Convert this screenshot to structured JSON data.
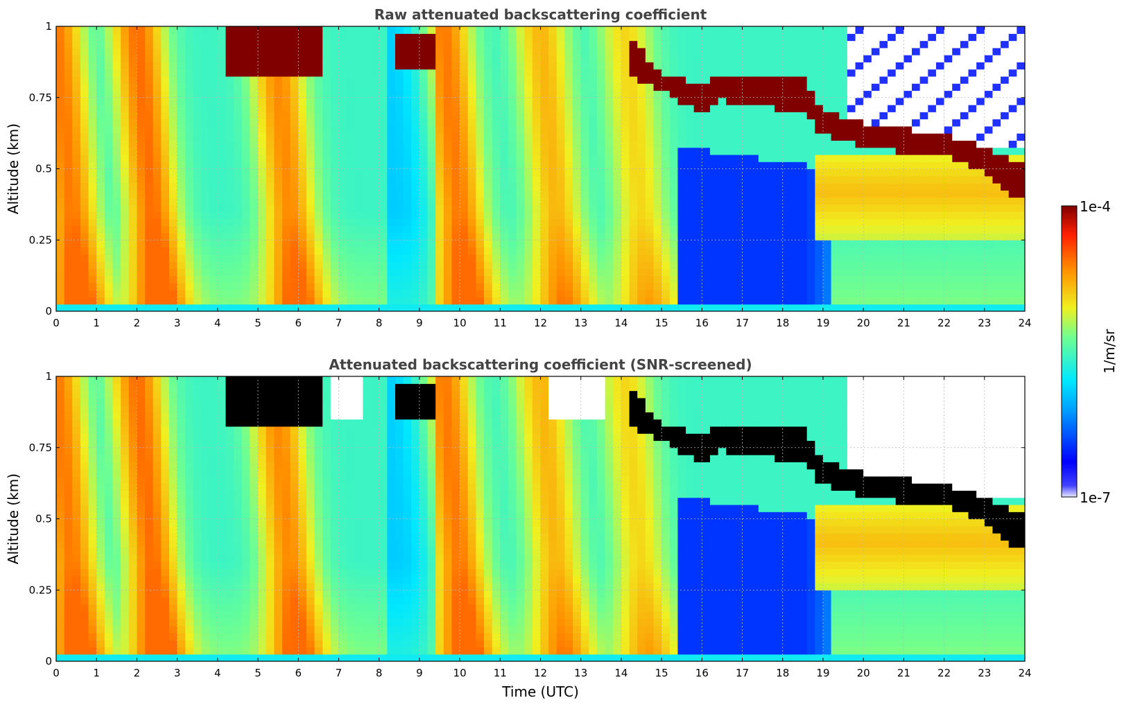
{
  "chart_data": [
    {
      "type": "heatmap",
      "title": "Raw attenuated backscattering coefficient",
      "xlabel": "",
      "ylabel": "Altitude (km)",
      "xlim": [
        0,
        24
      ],
      "ylim": [
        0,
        1
      ],
      "x_ticks": [
        "0",
        "1",
        "2",
        "3",
        "4",
        "5",
        "6",
        "7",
        "8",
        "9",
        "10",
        "11",
        "12",
        "13",
        "14",
        "15",
        "16",
        "17",
        "18",
        "19",
        "20",
        "21",
        "22",
        "23",
        "24"
      ],
      "y_ticks": [
        "0",
        "0.25",
        "0.5",
        "0.75",
        "1"
      ],
      "grid": true,
      "screened": false,
      "cloud_layer": {
        "time_utc": [
          4.2,
          5.5,
          6.5,
          8.5,
          9.3,
          14.2,
          15.0,
          16.0,
          16.5,
          17.5,
          18.5,
          19.0,
          20.0,
          21.0,
          22.0,
          23.0,
          24.0
        ],
        "base_km": [
          0.82,
          0.82,
          0.82,
          0.84,
          0.85,
          0.82,
          0.77,
          0.7,
          0.74,
          0.72,
          0.7,
          0.62,
          0.58,
          0.56,
          0.56,
          0.48,
          0.38
        ],
        "top_km": [
          1.0,
          1.0,
          1.0,
          0.98,
          0.98,
          0.97,
          0.83,
          0.8,
          0.83,
          0.82,
          0.82,
          0.7,
          0.66,
          0.64,
          0.63,
          0.57,
          0.52
        ]
      }
    },
    {
      "type": "heatmap",
      "title": "Attenuated backscattering coefficient (SNR-screened)",
      "xlabel": "Time (UTC)",
      "ylabel": "Altitude (km)",
      "xlim": [
        0,
        24
      ],
      "ylim": [
        0,
        1
      ],
      "x_ticks": [
        "0",
        "1",
        "2",
        "3",
        "4",
        "5",
        "6",
        "7",
        "8",
        "9",
        "10",
        "11",
        "12",
        "13",
        "14",
        "15",
        "16",
        "17",
        "18",
        "19",
        "20",
        "21",
        "22",
        "23",
        "24"
      ],
      "y_ticks": [
        "0",
        "0.25",
        "0.5",
        "0.75",
        "1"
      ],
      "grid": true,
      "screened": true
    }
  ],
  "colorbar": {
    "label": "1/m/sr",
    "max_label": "1e-4",
    "min_label": "1e-7",
    "colormap": "jet",
    "saturation_color_screened": "#000000"
  },
  "colors": {
    "deep_blue": "#0020ff",
    "cyan": "#20e0f0",
    "yellow": "#f0f020",
    "orange": "#ff8c1a",
    "dark_red": "#800000"
  }
}
